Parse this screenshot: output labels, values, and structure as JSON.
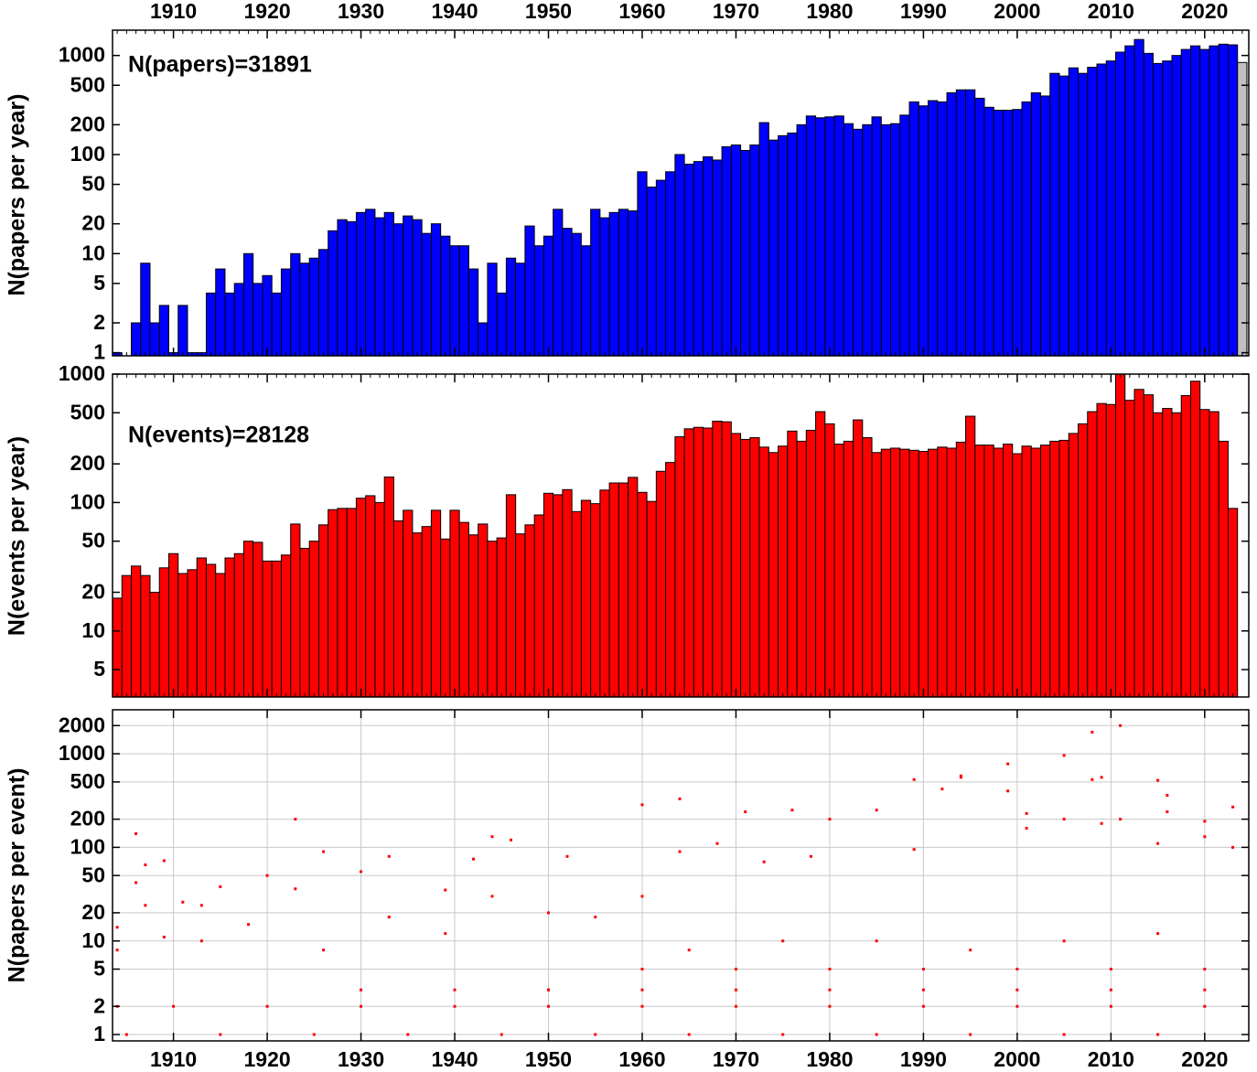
{
  "chart_data": [
    {
      "type": "bar",
      "ylabel": "N(papers per year)",
      "annotation": "N(papers)=31891",
      "log_y": true,
      "xlim": [
        1903.5,
        2024.7
      ],
      "ylim": [
        0.93,
        1800
      ],
      "xticks": [
        1910,
        1920,
        1930,
        1940,
        1950,
        1960,
        1970,
        1980,
        1990,
        2000,
        2010,
        2020
      ],
      "yticks": [
        1,
        2,
        5,
        10,
        20,
        50,
        100,
        200,
        500,
        1000
      ],
      "categories": [
        1904,
        1905,
        1906,
        1907,
        1908,
        1909,
        1910,
        1911,
        1912,
        1913,
        1914,
        1915,
        1916,
        1917,
        1918,
        1919,
        1920,
        1921,
        1922,
        1923,
        1924,
        1925,
        1926,
        1927,
        1928,
        1929,
        1930,
        1931,
        1932,
        1933,
        1934,
        1935,
        1936,
        1937,
        1938,
        1939,
        1940,
        1941,
        1942,
        1943,
        1944,
        1945,
        1946,
        1947,
        1948,
        1949,
        1950,
        1951,
        1952,
        1953,
        1954,
        1955,
        1956,
        1957,
        1958,
        1959,
        1960,
        1961,
        1962,
        1963,
        1964,
        1965,
        1966,
        1967,
        1968,
        1969,
        1970,
        1971,
        1972,
        1973,
        1974,
        1975,
        1976,
        1977,
        1978,
        1979,
        1980,
        1981,
        1982,
        1983,
        1984,
        1985,
        1986,
        1987,
        1988,
        1989,
        1990,
        1991,
        1992,
        1993,
        1994,
        1995,
        1996,
        1997,
        1998,
        1999,
        2000,
        2001,
        2002,
        2003,
        2004,
        2005,
        2006,
        2007,
        2008,
        2009,
        2010,
        2011,
        2012,
        2013,
        2014,
        2015,
        2016,
        2017,
        2018,
        2019,
        2020,
        2021,
        2022,
        2023,
        2024
      ],
      "series": [
        {
          "color": "#0000ff",
          "values": [
            1,
            null,
            2,
            8,
            2,
            3,
            1,
            3,
            1,
            1,
            4,
            7,
            4,
            5,
            10,
            5,
            6,
            4,
            7,
            10,
            8,
            9,
            11,
            17,
            22,
            21,
            26,
            28,
            23,
            26,
            20,
            24,
            22,
            16,
            20,
            15,
            12,
            12,
            7,
            2,
            8,
            4,
            9,
            8,
            19,
            12,
            15,
            28,
            18,
            16,
            12,
            28,
            23,
            26,
            28,
            27,
            67,
            47,
            55,
            67,
            100,
            80,
            85,
            95,
            88,
            120,
            125,
            110,
            125,
            210,
            140,
            155,
            165,
            200,
            245,
            235,
            240,
            245,
            205,
            180,
            200,
            240,
            200,
            205,
            250,
            340,
            310,
            350,
            340,
            420,
            450,
            450,
            370,
            300,
            280,
            280,
            285,
            340,
            420,
            390,
            660,
            620,
            750,
            660,
            760,
            820,
            880,
            1080,
            1250,
            1450,
            1050,
            830,
            880,
            1000,
            1150,
            1250,
            1150,
            1250,
            1300,
            1280,
            null
          ]
        },
        {
          "color": "#c0c0c0",
          "values": [
            null,
            null,
            null,
            null,
            null,
            null,
            null,
            null,
            null,
            null,
            null,
            null,
            null,
            null,
            null,
            null,
            null,
            null,
            null,
            null,
            null,
            null,
            null,
            null,
            null,
            null,
            null,
            null,
            null,
            null,
            null,
            null,
            null,
            null,
            null,
            null,
            null,
            null,
            null,
            null,
            null,
            null,
            null,
            null,
            null,
            null,
            null,
            null,
            null,
            null,
            null,
            null,
            null,
            null,
            null,
            null,
            null,
            null,
            null,
            null,
            null,
            null,
            null,
            null,
            null,
            null,
            null,
            null,
            null,
            null,
            null,
            null,
            null,
            null,
            null,
            null,
            null,
            null,
            null,
            null,
            null,
            null,
            null,
            null,
            null,
            null,
            null,
            null,
            null,
            null,
            null,
            null,
            null,
            null,
            null,
            null,
            null,
            null,
            null,
            null,
            null,
            null,
            null,
            null,
            null,
            null,
            null,
            null,
            null,
            null,
            null,
            null,
            null,
            null,
            null,
            null,
            null,
            null,
            null,
            null,
            850
          ]
        }
      ]
    },
    {
      "type": "bar",
      "ylabel": "N(events per year)",
      "annotation": "N(events)=28128",
      "log_y": true,
      "xlim": [
        1903.5,
        2024.7
      ],
      "ylim": [
        3.06,
        1000
      ],
      "xticks": [
        1910,
        1920,
        1930,
        1940,
        1950,
        1960,
        1970,
        1980,
        1990,
        2000,
        2010,
        2020
      ],
      "yticks": [
        5,
        10,
        20,
        50,
        100,
        200,
        500,
        1000
      ],
      "categories": [
        1904,
        1905,
        1906,
        1907,
        1908,
        1909,
        1910,
        1911,
        1912,
        1913,
        1914,
        1915,
        1916,
        1917,
        1918,
        1919,
        1920,
        1921,
        1922,
        1923,
        1924,
        1925,
        1926,
        1927,
        1928,
        1929,
        1930,
        1931,
        1932,
        1933,
        1934,
        1935,
        1936,
        1937,
        1938,
        1939,
        1940,
        1941,
        1942,
        1943,
        1944,
        1945,
        1946,
        1947,
        1948,
        1949,
        1950,
        1951,
        1952,
        1953,
        1954,
        1955,
        1956,
        1957,
        1958,
        1959,
        1960,
        1961,
        1962,
        1963,
        1964,
        1965,
        1966,
        1967,
        1968,
        1969,
        1970,
        1971,
        1972,
        1973,
        1974,
        1975,
        1976,
        1977,
        1978,
        1979,
        1980,
        1981,
        1982,
        1983,
        1984,
        1985,
        1986,
        1987,
        1988,
        1989,
        1990,
        1991,
        1992,
        1993,
        1994,
        1995,
        1996,
        1997,
        1998,
        1999,
        2000,
        2001,
        2002,
        2003,
        2004,
        2005,
        2006,
        2007,
        2008,
        2009,
        2010,
        2011,
        2012,
        2013,
        2014,
        2015,
        2016,
        2017,
        2018,
        2019,
        2020,
        2021,
        2022,
        2023
      ],
      "series": [
        {
          "color": "#ff0000",
          "values": [
            18,
            27,
            32,
            27,
            20,
            31,
            40,
            28,
            30,
            37,
            33,
            28,
            37,
            40,
            50,
            49,
            35,
            35,
            39,
            68,
            44,
            50,
            67,
            88,
            90,
            90,
            108,
            113,
            100,
            158,
            72,
            87,
            58,
            65,
            87,
            52,
            87,
            70,
            56,
            68,
            50,
            53,
            115,
            57,
            67,
            80,
            118,
            115,
            126,
            85,
            104,
            98,
            125,
            142,
            142,
            157,
            120,
            102,
            175,
            205,
            325,
            375,
            385,
            380,
            430,
            425,
            345,
            310,
            320,
            270,
            245,
            275,
            360,
            300,
            365,
            510,
            410,
            285,
            300,
            440,
            320,
            245,
            260,
            265,
            260,
            255,
            250,
            260,
            270,
            265,
            295,
            470,
            280,
            280,
            265,
            285,
            240,
            275,
            265,
            280,
            300,
            305,
            345,
            410,
            510,
            590,
            580,
            1000,
            625,
            760,
            690,
            500,
            540,
            500,
            680,
            880,
            530,
            510,
            300,
            90
          ]
        }
      ]
    },
    {
      "type": "scatter",
      "ylabel": "N(papers per event)",
      "log_y": true,
      "grid": true,
      "color": "#ff0000",
      "xlim": [
        1903.5,
        2024.7
      ],
      "ylim": [
        0.855,
        2950
      ],
      "xticks": [
        1910,
        1920,
        1930,
        1940,
        1950,
        1960,
        1970,
        1980,
        1990,
        2000,
        2010,
        2020
      ],
      "yticks": [
        1,
        2,
        5,
        10,
        20,
        50,
        100,
        200,
        500,
        1000,
        2000
      ],
      "x": [
        1904,
        1904,
        1904,
        1906,
        1906,
        1907,
        1907,
        1909,
        1909,
        1911,
        1913,
        1913,
        1915,
        1918,
        1920,
        1923,
        1923,
        1926,
        1926,
        1930,
        1933,
        1933,
        1939,
        1939,
        1942,
        1944,
        1944,
        1946,
        1950,
        1950,
        1952,
        1955,
        1960,
        1960,
        1964,
        1964,
        1968,
        1971,
        1973,
        1976,
        1978,
        1980,
        1985,
        1989,
        1989,
        1992,
        1994,
        1994,
        1999,
        1999,
        2001,
        2001,
        2005,
        2005,
        2008,
        2008,
        2009,
        2009,
        2011,
        2011,
        2015,
        2015,
        2016,
        2016,
        2020,
        2020,
        2023,
        2023,
        1905,
        1915,
        1925,
        1935,
        1945,
        1955,
        1965,
        1975,
        1985,
        1995,
        2005,
        2015,
        1910,
        1920,
        1930,
        1940,
        1950,
        1960,
        1970,
        1980,
        1990,
        2000,
        2010,
        2020,
        1930,
        1940,
        1950,
        1960,
        1970,
        1980,
        1990,
        2000,
        2010,
        2020,
        1960,
        1970,
        1980,
        1990,
        2000,
        2010,
        2020,
        1965,
        1975,
        1985,
        1995,
        2005,
        2015
      ],
      "y": [
        2,
        14,
        8,
        140,
        42,
        65,
        24,
        72,
        11,
        26,
        24,
        10,
        38,
        15,
        50,
        36,
        200,
        8,
        90,
        55,
        18,
        80,
        12,
        35,
        75,
        130,
        30,
        120,
        20,
        3,
        80,
        18,
        285,
        30,
        330,
        90,
        110,
        240,
        70,
        250,
        80,
        200,
        250,
        95,
        530,
        420,
        560,
        580,
        780,
        400,
        230,
        160,
        960,
        200,
        1700,
        530,
        560,
        180,
        2000,
        200,
        520,
        110,
        360,
        240,
        190,
        130,
        270,
        100,
        1,
        1,
        1,
        1,
        1,
        1,
        1,
        1,
        1,
        1,
        1,
        1,
        2,
        2,
        2,
        2,
        2,
        2,
        2,
        2,
        2,
        2,
        2,
        2,
        3,
        3,
        3,
        3,
        3,
        3,
        3,
        3,
        3,
        3,
        5,
        5,
        5,
        5,
        5,
        5,
        5,
        8,
        10,
        10,
        8,
        10,
        12
      ]
    }
  ]
}
